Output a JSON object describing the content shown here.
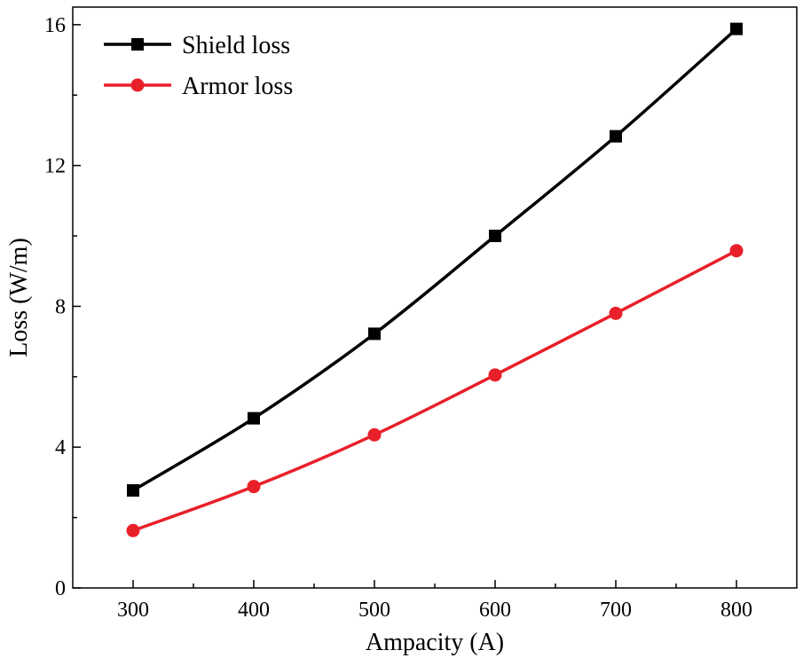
{
  "chart_data": {
    "type": "line",
    "title": "",
    "xlabel": "Ampacity (A)",
    "ylabel": "Loss (W/m)",
    "x": [
      300,
      400,
      500,
      600,
      700,
      800
    ],
    "xlim": [
      250,
      850
    ],
    "ylim": [
      0,
      16.5
    ],
    "xticks": [
      300,
      400,
      500,
      600,
      700,
      800
    ],
    "yticks": [
      0,
      4,
      8,
      12,
      16
    ],
    "grid": false,
    "legend_position": "top-left",
    "series": [
      {
        "name": "Shield loss",
        "values": [
          2.77,
          4.82,
          7.22,
          10.0,
          12.83,
          15.88
        ],
        "color": "#000000",
        "marker": "square"
      },
      {
        "name": "Armor loss",
        "values": [
          1.63,
          2.88,
          4.35,
          6.05,
          7.8,
          9.58
        ],
        "color": "#e8202a",
        "marker": "circle"
      }
    ]
  }
}
